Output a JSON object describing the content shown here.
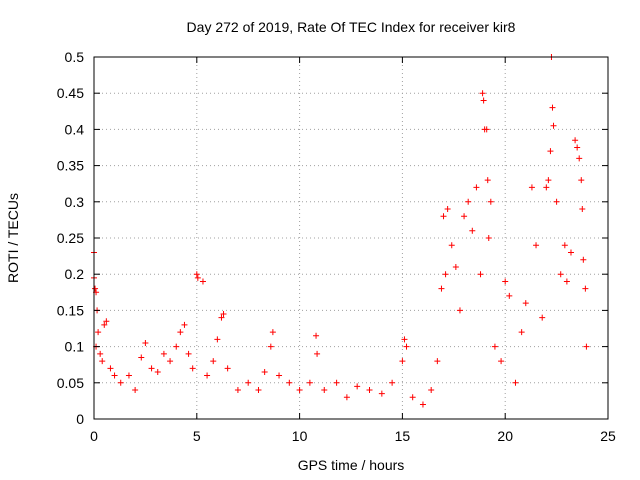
{
  "chart_data": {
    "type": "scatter",
    "title": "Day 272 of 2019, Rate Of TEC Index for receiver kir8",
    "xlabel": "GPS time / hours",
    "ylabel": "ROTI / TECUs",
    "xlim": [
      0,
      25
    ],
    "ylim": [
      0,
      0.5
    ],
    "grid": true,
    "marker": "plus",
    "color": "#ff0000",
    "x_ticks": [
      0,
      5,
      10,
      15,
      20,
      25
    ],
    "x_tick_labels": [
      "0",
      "5",
      "10",
      "15",
      "20",
      "25"
    ],
    "y_ticks": [
      0,
      0.05,
      0.1,
      0.15,
      0.2,
      0.25,
      0.3,
      0.35,
      0.4,
      0.45,
      0.5
    ],
    "y_tick_labels": [
      "0",
      "0.05",
      "0.1",
      "0.15",
      "0.2",
      "0.25",
      "0.3",
      "0.35",
      "0.4",
      "0.45",
      "0.5"
    ],
    "series": [
      {
        "name": "ROTI",
        "points": [
          [
            0.0,
            0.23
          ],
          [
            0.0,
            0.195
          ],
          [
            0.05,
            0.18
          ],
          [
            0.1,
            0.175
          ],
          [
            0.15,
            0.15
          ],
          [
            0.2,
            0.12
          ],
          [
            0.1,
            0.1
          ],
          [
            0.3,
            0.09
          ],
          [
            0.5,
            0.13
          ],
          [
            0.6,
            0.135
          ],
          [
            0.4,
            0.08
          ],
          [
            0.8,
            0.07
          ],
          [
            1.0,
            0.06
          ],
          [
            1.3,
            0.05
          ],
          [
            1.7,
            0.06
          ],
          [
            2.0,
            0.04
          ],
          [
            2.3,
            0.085
          ],
          [
            2.5,
            0.105
          ],
          [
            2.8,
            0.07
          ],
          [
            3.1,
            0.065
          ],
          [
            3.4,
            0.09
          ],
          [
            3.7,
            0.08
          ],
          [
            4.0,
            0.1
          ],
          [
            4.2,
            0.12
          ],
          [
            4.4,
            0.13
          ],
          [
            4.6,
            0.09
          ],
          [
            4.8,
            0.07
          ],
          [
            5.0,
            0.2
          ],
          [
            5.05,
            0.195
          ],
          [
            5.3,
            0.19
          ],
          [
            5.5,
            0.06
          ],
          [
            5.8,
            0.08
          ],
          [
            6.0,
            0.11
          ],
          [
            6.2,
            0.14
          ],
          [
            6.3,
            0.145
          ],
          [
            6.5,
            0.07
          ],
          [
            7.0,
            0.04
          ],
          [
            7.5,
            0.05
          ],
          [
            8.0,
            0.04
          ],
          [
            8.3,
            0.065
          ],
          [
            8.6,
            0.1
          ],
          [
            8.7,
            0.12
          ],
          [
            9.0,
            0.06
          ],
          [
            9.5,
            0.05
          ],
          [
            10.0,
            0.04
          ],
          [
            10.5,
            0.05
          ],
          [
            10.8,
            0.115
          ],
          [
            10.85,
            0.09
          ],
          [
            11.2,
            0.04
          ],
          [
            11.8,
            0.05
          ],
          [
            12.3,
            0.03
          ],
          [
            12.8,
            0.045
          ],
          [
            13.4,
            0.04
          ],
          [
            14.0,
            0.035
          ],
          [
            14.5,
            0.05
          ],
          [
            15.0,
            0.08
          ],
          [
            15.1,
            0.11
          ],
          [
            15.2,
            0.1
          ],
          [
            15.5,
            0.03
          ],
          [
            16.0,
            0.02
          ],
          [
            16.4,
            0.04
          ],
          [
            16.7,
            0.08
          ],
          [
            16.9,
            0.18
          ],
          [
            17.0,
            0.28
          ],
          [
            17.1,
            0.2
          ],
          [
            17.2,
            0.29
          ],
          [
            17.4,
            0.24
          ],
          [
            17.6,
            0.21
          ],
          [
            17.8,
            0.15
          ],
          [
            18.0,
            0.28
          ],
          [
            18.2,
            0.3
          ],
          [
            18.4,
            0.26
          ],
          [
            18.6,
            0.32
          ],
          [
            18.8,
            0.2
          ],
          [
            18.9,
            0.45
          ],
          [
            18.95,
            0.44
          ],
          [
            19.0,
            0.4
          ],
          [
            19.1,
            0.4
          ],
          [
            19.15,
            0.33
          ],
          [
            19.2,
            0.25
          ],
          [
            19.3,
            0.3
          ],
          [
            19.5,
            0.1
          ],
          [
            19.8,
            0.08
          ],
          [
            20.0,
            0.19
          ],
          [
            20.2,
            0.17
          ],
          [
            20.5,
            0.05
          ],
          [
            20.8,
            0.12
          ],
          [
            21.0,
            0.16
          ],
          [
            21.3,
            0.32
          ],
          [
            21.5,
            0.24
          ],
          [
            21.8,
            0.14
          ],
          [
            22.0,
            0.32
          ],
          [
            22.1,
            0.33
          ],
          [
            22.2,
            0.37
          ],
          [
            22.25,
            0.5
          ],
          [
            22.3,
            0.43
          ],
          [
            22.35,
            0.405
          ],
          [
            22.5,
            0.3
          ],
          [
            22.7,
            0.2
          ],
          [
            22.9,
            0.24
          ],
          [
            23.0,
            0.19
          ],
          [
            23.2,
            0.23
          ],
          [
            23.4,
            0.385
          ],
          [
            23.5,
            0.375
          ],
          [
            23.6,
            0.36
          ],
          [
            23.7,
            0.33
          ],
          [
            23.75,
            0.29
          ],
          [
            23.8,
            0.22
          ],
          [
            23.9,
            0.18
          ],
          [
            23.95,
            0.1
          ]
        ]
      }
    ]
  }
}
